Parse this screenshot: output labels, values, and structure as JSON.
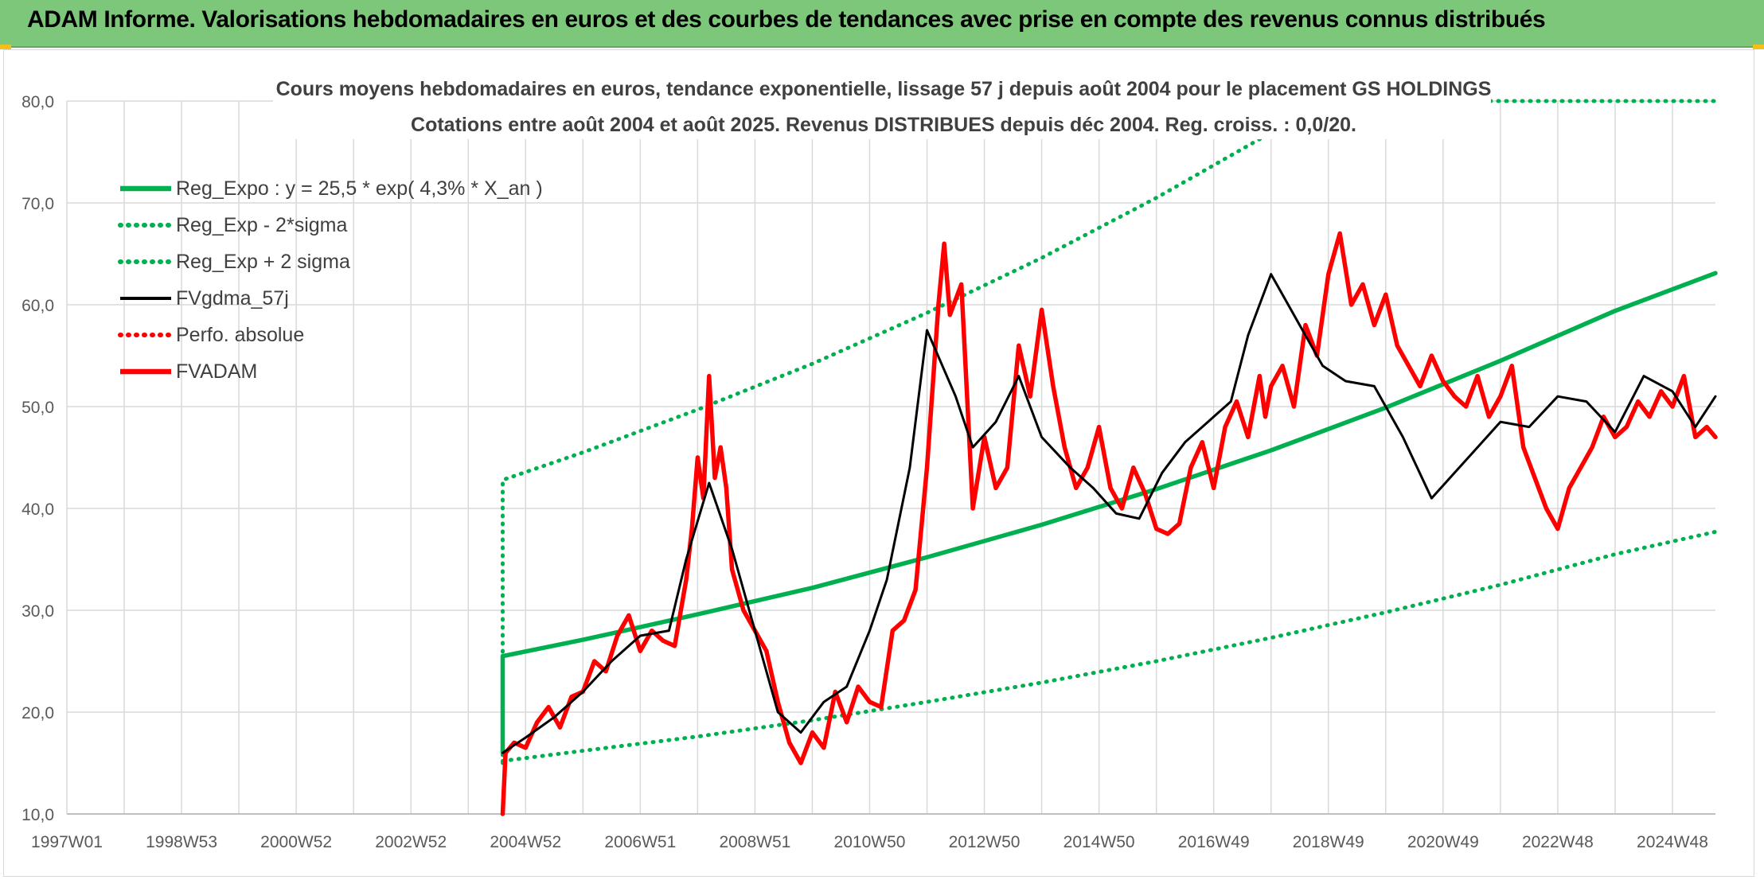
{
  "header": {
    "title": "ADAM Informe. Valorisations hebdomadaires en euros et des courbes de tendances avec prise en compte des revenus connus distribués"
  },
  "colors": {
    "header_bg": "#7dc77b",
    "reg_expo": "#00b050",
    "fvgdma": "#000000",
    "fvadam": "#ff0000",
    "grid": "#d9d9d9"
  },
  "chart_data": {
    "type": "line",
    "title": "Cours moyens hebdomadaires en euros, tendance exponentielle, lissage 57 j depuis août 2004 pour le placement GS HOLDINGS",
    "subtitle": "Cotations entre août 2004 et août 2025. Revenus DISTRIBUES depuis déc 2004. Reg. croiss. : 0,0/20.",
    "xlabel": "",
    "ylabel": "",
    "ylim": [
      10,
      80
    ],
    "xlim": [
      1997.0,
      2025.75
    ],
    "y_ticks": [
      "10,0",
      "20,0",
      "30,0",
      "40,0",
      "50,0",
      "60,0",
      "70,0",
      "80,0"
    ],
    "x_ticks": [
      {
        "label": "1997W01",
        "x": 1997.0
      },
      {
        "label": "1998W53",
        "x": 1999.0
      },
      {
        "label": "2000W52",
        "x": 2001.0
      },
      {
        "label": "2002W52",
        "x": 2003.0
      },
      {
        "label": "2004W52",
        "x": 2005.0
      },
      {
        "label": "2006W51",
        "x": 2007.0
      },
      {
        "label": "2008W51",
        "x": 2009.0
      },
      {
        "label": "2010W50",
        "x": 2011.0
      },
      {
        "label": "2012W50",
        "x": 2013.0
      },
      {
        "label": "2014W50",
        "x": 2015.0
      },
      {
        "label": "2016W49",
        "x": 2017.0
      },
      {
        "label": "2018W49",
        "x": 2019.0
      },
      {
        "label": "2020W49",
        "x": 2021.0
      },
      {
        "label": "2022W48",
        "x": 2023.0
      },
      {
        "label": "2024W48",
        "x": 2025.0
      }
    ],
    "grid": true,
    "legend_position": "top-left",
    "series": [
      {
        "name": "Reg_Expo : y = 25,5 * exp( 4,3% *  X_an )",
        "style": "solid-thick",
        "color": "#00b050",
        "x": [
          2004.6,
          2004.6,
          2006,
          2008,
          2010,
          2012,
          2014,
          2016,
          2018,
          2020,
          2022,
          2024,
          2025.75
        ],
        "values": [
          16.0,
          25.5,
          27.1,
          29.6,
          32.2,
          35.2,
          38.4,
          41.9,
          45.7,
          49.9,
          54.5,
          59.4,
          63.1
        ]
      },
      {
        "name": "Reg_Exp - 2*sigma",
        "style": "dotted",
        "color": "#00b050",
        "x": [
          2004.6,
          2006,
          2008,
          2010,
          2012,
          2014,
          2016,
          2018,
          2020,
          2022,
          2024,
          2025.75
        ],
        "values": [
          15.2,
          16.2,
          17.6,
          19.2,
          21.0,
          22.9,
          25.0,
          27.3,
          29.8,
          32.5,
          35.5,
          37.7
        ]
      },
      {
        "name": "Reg_Exp + 2 sigma",
        "style": "dotted",
        "color": "#00b050",
        "x": [
          2004.6,
          2004.6,
          2006,
          2008,
          2010,
          2012,
          2014,
          2016,
          2018,
          2018.5,
          2025.75
        ],
        "values": [
          15.0,
          42.8,
          45.5,
          49.7,
          54.2,
          59.2,
          64.6,
          70.5,
          76.9,
          80.0,
          80.0
        ]
      },
      {
        "name": "FVgdma_57j",
        "style": "solid",
        "color": "#000000",
        "x": [
          2004.6,
          2005.0,
          2005.5,
          2006.0,
          2006.5,
          2007.0,
          2007.5,
          2007.8,
          2008.2,
          2008.6,
          2009.0,
          2009.4,
          2009.8,
          2010.2,
          2010.6,
          2011.0,
          2011.3,
          2011.7,
          2012.0,
          2012.5,
          2012.8,
          2013.2,
          2013.6,
          2014.0,
          2014.5,
          2014.9,
          2015.3,
          2015.7,
          2016.1,
          2016.5,
          2016.9,
          2017.3,
          2017.6,
          2018.0,
          2018.5,
          2018.9,
          2019.3,
          2019.8,
          2020.3,
          2020.8,
          2021.2,
          2021.6,
          2022.0,
          2022.5,
          2023.0,
          2023.5,
          2024.0,
          2024.5,
          2025.0,
          2025.4,
          2025.75
        ],
        "values": [
          16.0,
          17.5,
          19.5,
          22.0,
          25.0,
          27.5,
          28.0,
          35.0,
          42.5,
          36.0,
          28.0,
          20.0,
          18.0,
          21.0,
          22.5,
          28.0,
          33.0,
          44.0,
          57.5,
          51.0,
          46.0,
          48.5,
          53.0,
          47.0,
          44.0,
          42.0,
          39.5,
          39.0,
          43.5,
          46.5,
          48.5,
          50.5,
          57.0,
          63.0,
          58.0,
          54.0,
          52.5,
          52.0,
          47.0,
          41.0,
          43.5,
          46.0,
          48.5,
          48.0,
          51.0,
          50.5,
          47.5,
          53.0,
          51.5,
          48.0,
          51.0
        ]
      },
      {
        "name": "Perfo. absolue",
        "style": "dotted",
        "color": "#ff0000",
        "x": [],
        "values": []
      },
      {
        "name": "FVADAM",
        "style": "solid-thick",
        "color": "#ff0000",
        "x": [
          2004.6,
          2004.65,
          2004.8,
          2005.0,
          2005.2,
          2005.4,
          2005.6,
          2005.8,
          2006.0,
          2006.2,
          2006.4,
          2006.6,
          2006.8,
          2007.0,
          2007.2,
          2007.4,
          2007.6,
          2007.8,
          2007.9,
          2008.0,
          2008.1,
          2008.2,
          2008.3,
          2008.4,
          2008.5,
          2008.6,
          2008.8,
          2009.0,
          2009.2,
          2009.4,
          2009.6,
          2009.8,
          2010.0,
          2010.2,
          2010.4,
          2010.6,
          2010.8,
          2011.0,
          2011.2,
          2011.4,
          2011.6,
          2011.8,
          2011.9,
          2012.0,
          2012.1,
          2012.2,
          2012.3,
          2012.4,
          2012.6,
          2012.8,
          2013.0,
          2013.2,
          2013.4,
          2013.6,
          2013.8,
          2014.0,
          2014.2,
          2014.4,
          2014.6,
          2014.8,
          2015.0,
          2015.2,
          2015.4,
          2015.6,
          2015.8,
          2016.0,
          2016.2,
          2016.4,
          2016.6,
          2016.8,
          2017.0,
          2017.2,
          2017.4,
          2017.6,
          2017.8,
          2017.9,
          2018.0,
          2018.2,
          2018.4,
          2018.6,
          2018.8,
          2019.0,
          2019.2,
          2019.4,
          2019.6,
          2019.8,
          2020.0,
          2020.2,
          2020.4,
          2020.6,
          2020.8,
          2021.0,
          2021.2,
          2021.4,
          2021.6,
          2021.8,
          2022.0,
          2022.2,
          2022.4,
          2022.6,
          2022.8,
          2023.0,
          2023.2,
          2023.4,
          2023.6,
          2023.8,
          2024.0,
          2024.2,
          2024.4,
          2024.6,
          2024.8,
          2025.0,
          2025.2,
          2025.4,
          2025.6,
          2025.75
        ],
        "values": [
          10.0,
          16.0,
          17.0,
          16.5,
          19.0,
          20.5,
          18.5,
          21.5,
          22.0,
          25.0,
          24.0,
          27.5,
          29.5,
          26.0,
          28.0,
          27.0,
          26.5,
          33.0,
          38.0,
          45.0,
          41.0,
          53.0,
          43.0,
          46.0,
          42.0,
          34.0,
          30.0,
          28.0,
          26.0,
          21.0,
          17.0,
          15.0,
          18.0,
          16.5,
          22.0,
          19.0,
          22.5,
          21.0,
          20.5,
          28.0,
          29.0,
          32.0,
          38.0,
          44.0,
          52.0,
          60.0,
          66.0,
          59.0,
          62.0,
          40.0,
          47.0,
          42.0,
          44.0,
          56.0,
          51.0,
          59.5,
          52.0,
          46.0,
          42.0,
          44.0,
          48.0,
          42.0,
          40.0,
          44.0,
          41.5,
          38.0,
          37.5,
          38.5,
          44.0,
          46.5,
          42.0,
          48.0,
          50.5,
          47.0,
          53.0,
          49.0,
          52.0,
          54.0,
          50.0,
          58.0,
          55.0,
          63.0,
          67.0,
          60.0,
          62.0,
          58.0,
          61.0,
          56.0,
          54.0,
          52.0,
          55.0,
          52.5,
          51.0,
          50.0,
          53.0,
          49.0,
          51.0,
          54.0,
          46.0,
          43.0,
          40.0,
          38.0,
          42.0,
          44.0,
          46.0,
          49.0,
          47.0,
          48.0,
          50.5,
          49.0,
          51.5,
          50.0,
          53.0,
          47.0,
          48.0,
          47.0
        ]
      }
    ]
  }
}
